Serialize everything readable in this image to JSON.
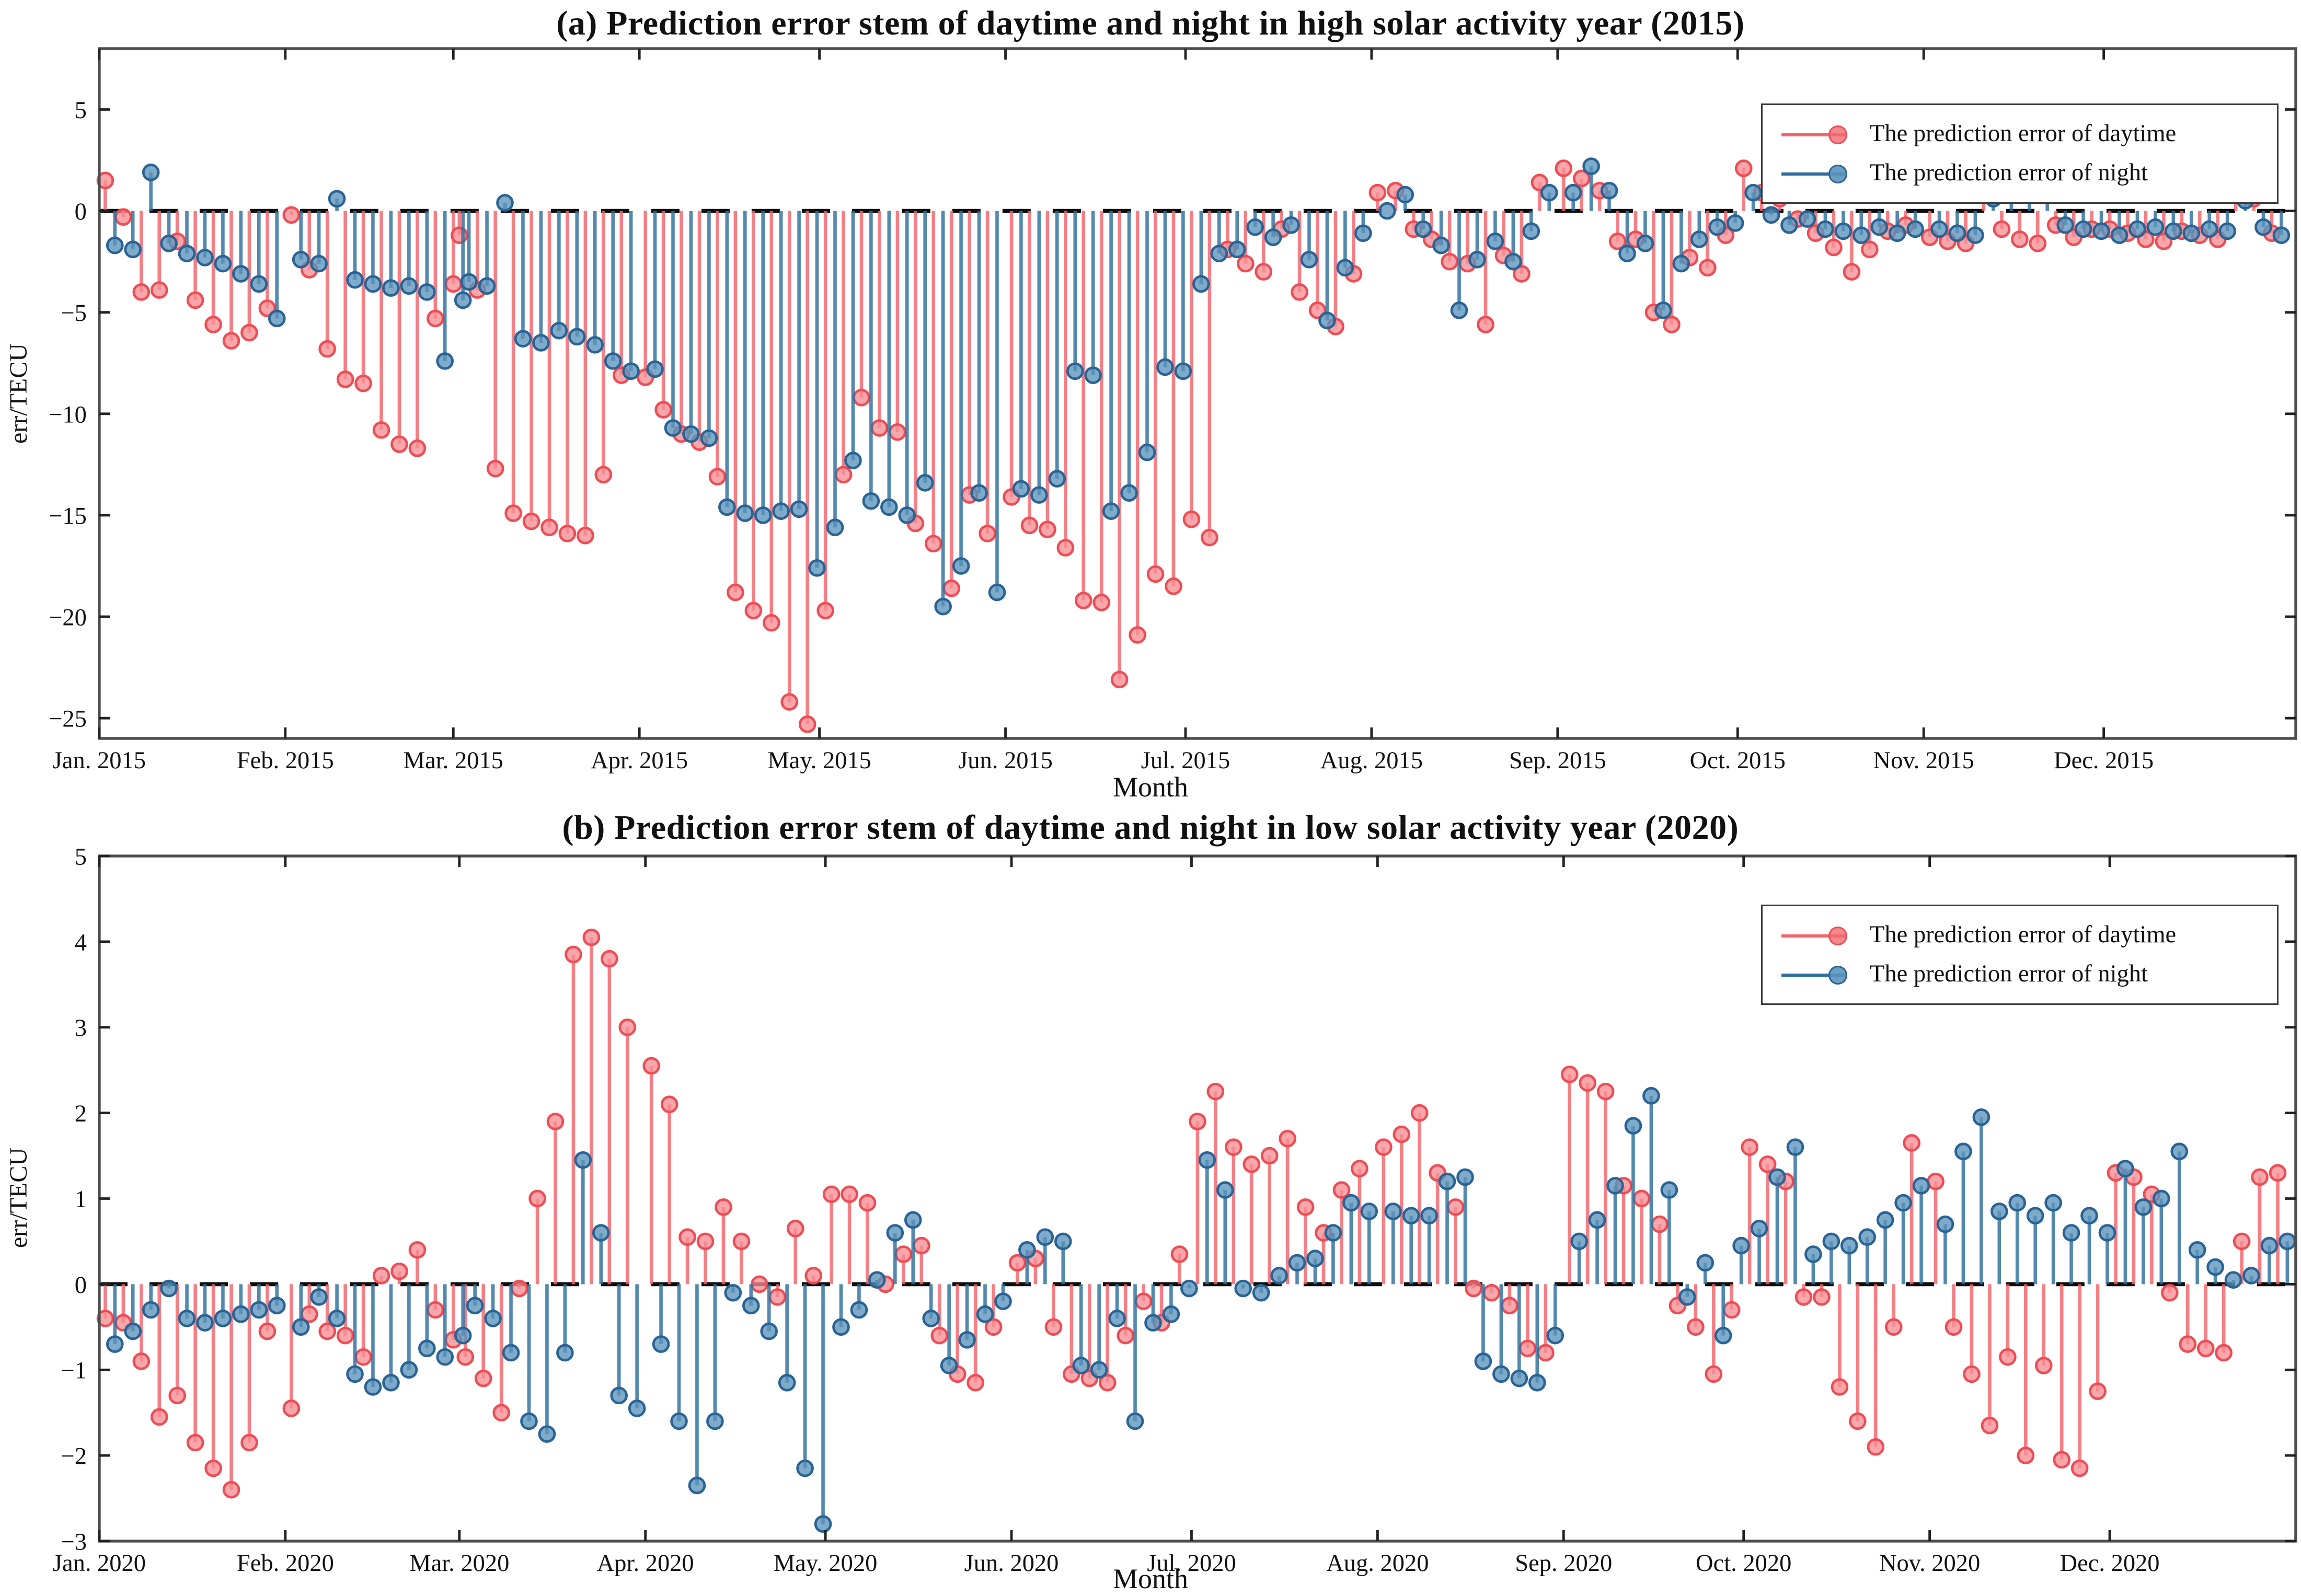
{
  "colors": {
    "daytime_stem": "#f2646b",
    "daytime_fill": "#f58e93",
    "daytime_edge": "#ee4d55",
    "night_stem": "#2e6e9e",
    "night_fill": "#5b94bd",
    "night_edge": "#2a6394",
    "zero_line": "#0d0d0d",
    "frame": "#4d4d4d",
    "text": "#111111"
  },
  "chart_data": [
    {
      "type": "stem",
      "panel": "a",
      "title": "(a) Prediction error stem of daytime and night in high solar activity year (2015)",
      "xlabel": "Month",
      "ylabel": "err/TECU",
      "legend": [
        "The prediction error of daytime",
        "The prediction error of night"
      ],
      "legend_position": "top-right",
      "grid": false,
      "ylim": [
        -26,
        8
      ],
      "yticks": [
        5,
        0,
        -5,
        -10,
        -15,
        -20,
        -25
      ],
      "xlim_days": [
        1,
        367
      ],
      "month_ticks_days": [
        1,
        32,
        60,
        91,
        121,
        152,
        182,
        213,
        244,
        274,
        305,
        335
      ],
      "xtick_labels": [
        "Jan. 2015",
        "Feb. 2015",
        "Mar. 2015",
        "Apr. 2015",
        "May. 2015",
        "Jun. 2015",
        "Jul. 2015",
        "Aug. 2015",
        "Sep. 2015",
        "Oct. 2015",
        "Nov. 2015",
        "Dec. 2015"
      ],
      "sample_days_of_month": [
        2,
        5,
        8,
        11,
        14,
        17,
        20,
        23,
        26,
        29
      ],
      "night_day_offset": 1.6,
      "series": [
        {
          "name": "The prediction error of daytime",
          "values": [
            1.5,
            -0.3,
            -4.0,
            -3.9,
            -1.5,
            -4.4,
            -5.6,
            -6.4,
            -6.0,
            -4.8,
            -0.2,
            -2.9,
            -6.8,
            -8.3,
            -8.5,
            -10.8,
            -11.5,
            -11.7,
            -5.3,
            -3.6,
            -1.2,
            -3.9,
            -12.7,
            -14.9,
            -15.3,
            -15.6,
            -15.9,
            -16.0,
            -13.0,
            -8.1,
            -8.2,
            -9.8,
            -11.0,
            -11.4,
            -13.1,
            -18.8,
            -19.7,
            -20.3,
            -24.2,
            -25.3,
            -19.7,
            -13.0,
            -9.2,
            -10.7,
            -10.9,
            -15.4,
            -16.4,
            -18.6,
            -14.0,
            -15.9,
            -14.1,
            -15.5,
            -15.7,
            -16.6,
            -19.2,
            -19.3,
            -23.1,
            -20.9,
            -17.9,
            -18.5,
            -15.2,
            -16.1,
            -1.9,
            -2.6,
            -3.0,
            -0.9,
            -4.0,
            -4.9,
            -5.7,
            -3.1,
            0.9,
            1.0,
            -0.9,
            -1.4,
            -2.5,
            -2.6,
            -5.6,
            -2.2,
            -3.1,
            1.4,
            2.1,
            1.6,
            1.0,
            -1.5,
            -1.4,
            -5.0,
            -5.6,
            -2.3,
            -2.8,
            -1.2,
            2.1,
            0.9,
            0.6,
            -0.4,
            -1.1,
            -1.8,
            -3.0,
            -1.9,
            -1.0,
            -0.7,
            -1.3,
            -1.5,
            -1.6,
            0.9,
            -0.9,
            -1.4,
            -1.6,
            -0.7,
            -1.3,
            -0.9,
            -0.9,
            -1.1,
            -1.4,
            -1.5,
            -1.0,
            -1.2,
            -1.4,
            0.8,
            0.6,
            -1.1
          ]
        },
        {
          "name": "The prediction error of night",
          "values": [
            -1.7,
            -1.9,
            1.9,
            -1.6,
            -2.1,
            -2.3,
            -2.6,
            -3.1,
            -3.6,
            -5.3,
            -2.4,
            -2.6,
            0.6,
            -3.4,
            -3.6,
            -3.8,
            -3.7,
            -4.0,
            -7.4,
            -4.4,
            -3.5,
            -3.7,
            0.4,
            -6.3,
            -6.5,
            -5.9,
            -6.2,
            -6.6,
            -7.4,
            -7.9,
            -7.8,
            -10.7,
            -11.0,
            -11.2,
            -14.6,
            -14.9,
            -15.0,
            -14.8,
            -14.7,
            -17.6,
            -15.6,
            -12.3,
            -14.3,
            -14.6,
            -15.0,
            -13.4,
            -19.5,
            -17.5,
            -13.9,
            -18.8,
            -13.7,
            -14.0,
            -13.2,
            -7.9,
            -8.1,
            -14.8,
            -13.9,
            -11.9,
            -7.7,
            -7.9,
            -3.6,
            -2.1,
            -1.9,
            -0.8,
            -1.3,
            -0.7,
            -2.4,
            -5.4,
            -2.8,
            -1.1,
            0.0,
            0.8,
            -0.9,
            -1.7,
            -4.9,
            -2.4,
            -1.5,
            -2.5,
            -1.0,
            0.9,
            0.9,
            2.2,
            1.0,
            -2.1,
            -1.6,
            -4.9,
            -2.6,
            -1.4,
            -0.8,
            -0.6,
            0.9,
            -0.2,
            -0.7,
            -0.4,
            -0.9,
            -1.0,
            -1.2,
            -0.8,
            -1.1,
            -0.9,
            -0.9,
            -1.1,
            -1.2,
            0.6,
            1.8,
            1.3,
            0.9,
            -0.7,
            -0.9,
            -1.0,
            -1.2,
            -0.9,
            -0.8,
            -1.0,
            -1.1,
            -0.9,
            -1.0,
            0.5,
            -0.8,
            -1.2
          ]
        }
      ]
    },
    {
      "type": "stem",
      "panel": "b",
      "title": "(b) Prediction error stem of daytime and night in low solar activity year (2020)",
      "xlabel": "Month",
      "ylabel": "err/TECU",
      "legend": [
        "The prediction error of daytime",
        "The prediction error of night"
      ],
      "legend_position": "top-right",
      "grid": false,
      "ylim": [
        -3,
        5
      ],
      "yticks": [
        5,
        4,
        3,
        2,
        1,
        0,
        -1,
        -2,
        -3
      ],
      "xlim_days": [
        1,
        367
      ],
      "month_ticks_days": [
        1,
        32,
        61,
        92,
        122,
        153,
        183,
        214,
        245,
        275,
        306,
        336
      ],
      "xtick_labels": [
        "Jan. 2020",
        "Feb. 2020",
        "Mar. 2020",
        "Apr. 2020",
        "May. 2020",
        "Jun. 2020",
        "Jul. 2020",
        "Aug. 2020",
        "Sep. 2020",
        "Oct. 2020",
        "Nov. 2020",
        "Dec. 2020"
      ],
      "sample_days_of_month": [
        2,
        5,
        8,
        11,
        14,
        17,
        20,
        23,
        26,
        29
      ],
      "night_day_offset": 1.6,
      "series": [
        {
          "name": "The prediction error of daytime",
          "values": [
            -0.4,
            -0.45,
            -0.9,
            -1.55,
            -1.3,
            -1.85,
            -2.15,
            -2.4,
            -1.85,
            -0.55,
            -1.45,
            -0.35,
            -0.55,
            -0.6,
            -0.85,
            0.1,
            0.15,
            0.4,
            -0.3,
            -0.65,
            -0.85,
            -1.1,
            -1.5,
            -0.05,
            1.0,
            1.9,
            3.85,
            4.05,
            3.8,
            3.0,
            2.55,
            2.1,
            0.55,
            0.5,
            0.9,
            0.5,
            0.0,
            -0.15,
            0.65,
            0.1,
            1.05,
            1.05,
            0.95,
            0.0,
            0.35,
            0.45,
            -0.6,
            -1.05,
            -1.15,
            -0.5,
            0.25,
            0.3,
            -0.5,
            -1.05,
            -1.1,
            -1.15,
            -0.6,
            -0.2,
            -0.45,
            0.35,
            1.9,
            2.25,
            1.6,
            1.4,
            1.5,
            1.7,
            0.9,
            0.6,
            1.1,
            1.35,
            1.6,
            1.75,
            2.0,
            1.3,
            0.9,
            -0.05,
            -0.1,
            -0.25,
            -0.75,
            -0.8,
            2.45,
            2.35,
            2.25,
            1.15,
            1.0,
            0.7,
            -0.25,
            -0.5,
            -1.05,
            -0.3,
            1.6,
            1.4,
            1.2,
            -0.15,
            -0.15,
            -1.2,
            -1.6,
            -1.9,
            -0.5,
            1.65,
            1.2,
            -0.5,
            -1.05,
            -1.65,
            -0.85,
            -2.0,
            -0.95,
            -2.05,
            -2.15,
            -1.25,
            1.3,
            1.25,
            1.05,
            -0.1,
            -0.7,
            -0.75,
            -0.8,
            0.5,
            1.25,
            1.3
          ]
        },
        {
          "name": "The prediction error of night",
          "values": [
            -0.7,
            -0.55,
            -0.3,
            -0.05,
            -0.4,
            -0.45,
            -0.4,
            -0.35,
            -0.3,
            -0.25,
            -0.5,
            -0.15,
            -0.4,
            -1.05,
            -1.2,
            -1.15,
            -1.0,
            -0.75,
            -0.85,
            -0.6,
            -0.25,
            -0.4,
            -0.8,
            -1.6,
            -1.75,
            -0.8,
            1.45,
            0.6,
            -1.3,
            -1.45,
            -0.7,
            -1.6,
            -2.35,
            -1.6,
            -0.1,
            -0.25,
            -0.55,
            -1.15,
            -2.15,
            -2.8,
            -0.5,
            -0.3,
            0.05,
            0.6,
            0.75,
            -0.4,
            -0.95,
            -0.65,
            -0.35,
            -0.2,
            0.4,
            0.55,
            0.5,
            -0.95,
            -1.0,
            -0.4,
            -1.6,
            -0.45,
            -0.35,
            -0.05,
            1.45,
            1.1,
            -0.05,
            -0.1,
            0.1,
            0.25,
            0.3,
            0.6,
            0.95,
            0.85,
            0.85,
            0.8,
            0.8,
            1.2,
            1.25,
            -0.9,
            -1.05,
            -1.1,
            -1.15,
            -0.6,
            0.5,
            0.75,
            1.15,
            1.85,
            2.2,
            1.1,
            -0.15,
            0.25,
            -0.6,
            0.45,
            0.65,
            1.25,
            1.6,
            0.35,
            0.5,
            0.45,
            0.55,
            0.75,
            0.95,
            1.15,
            0.7,
            1.55,
            1.95,
            0.85,
            0.95,
            0.8,
            0.95,
            0.6,
            0.8,
            0.6,
            1.35,
            0.9,
            1.0,
            1.55,
            0.4,
            0.2,
            0.05,
            0.1,
            0.45,
            0.5
          ]
        }
      ]
    }
  ]
}
